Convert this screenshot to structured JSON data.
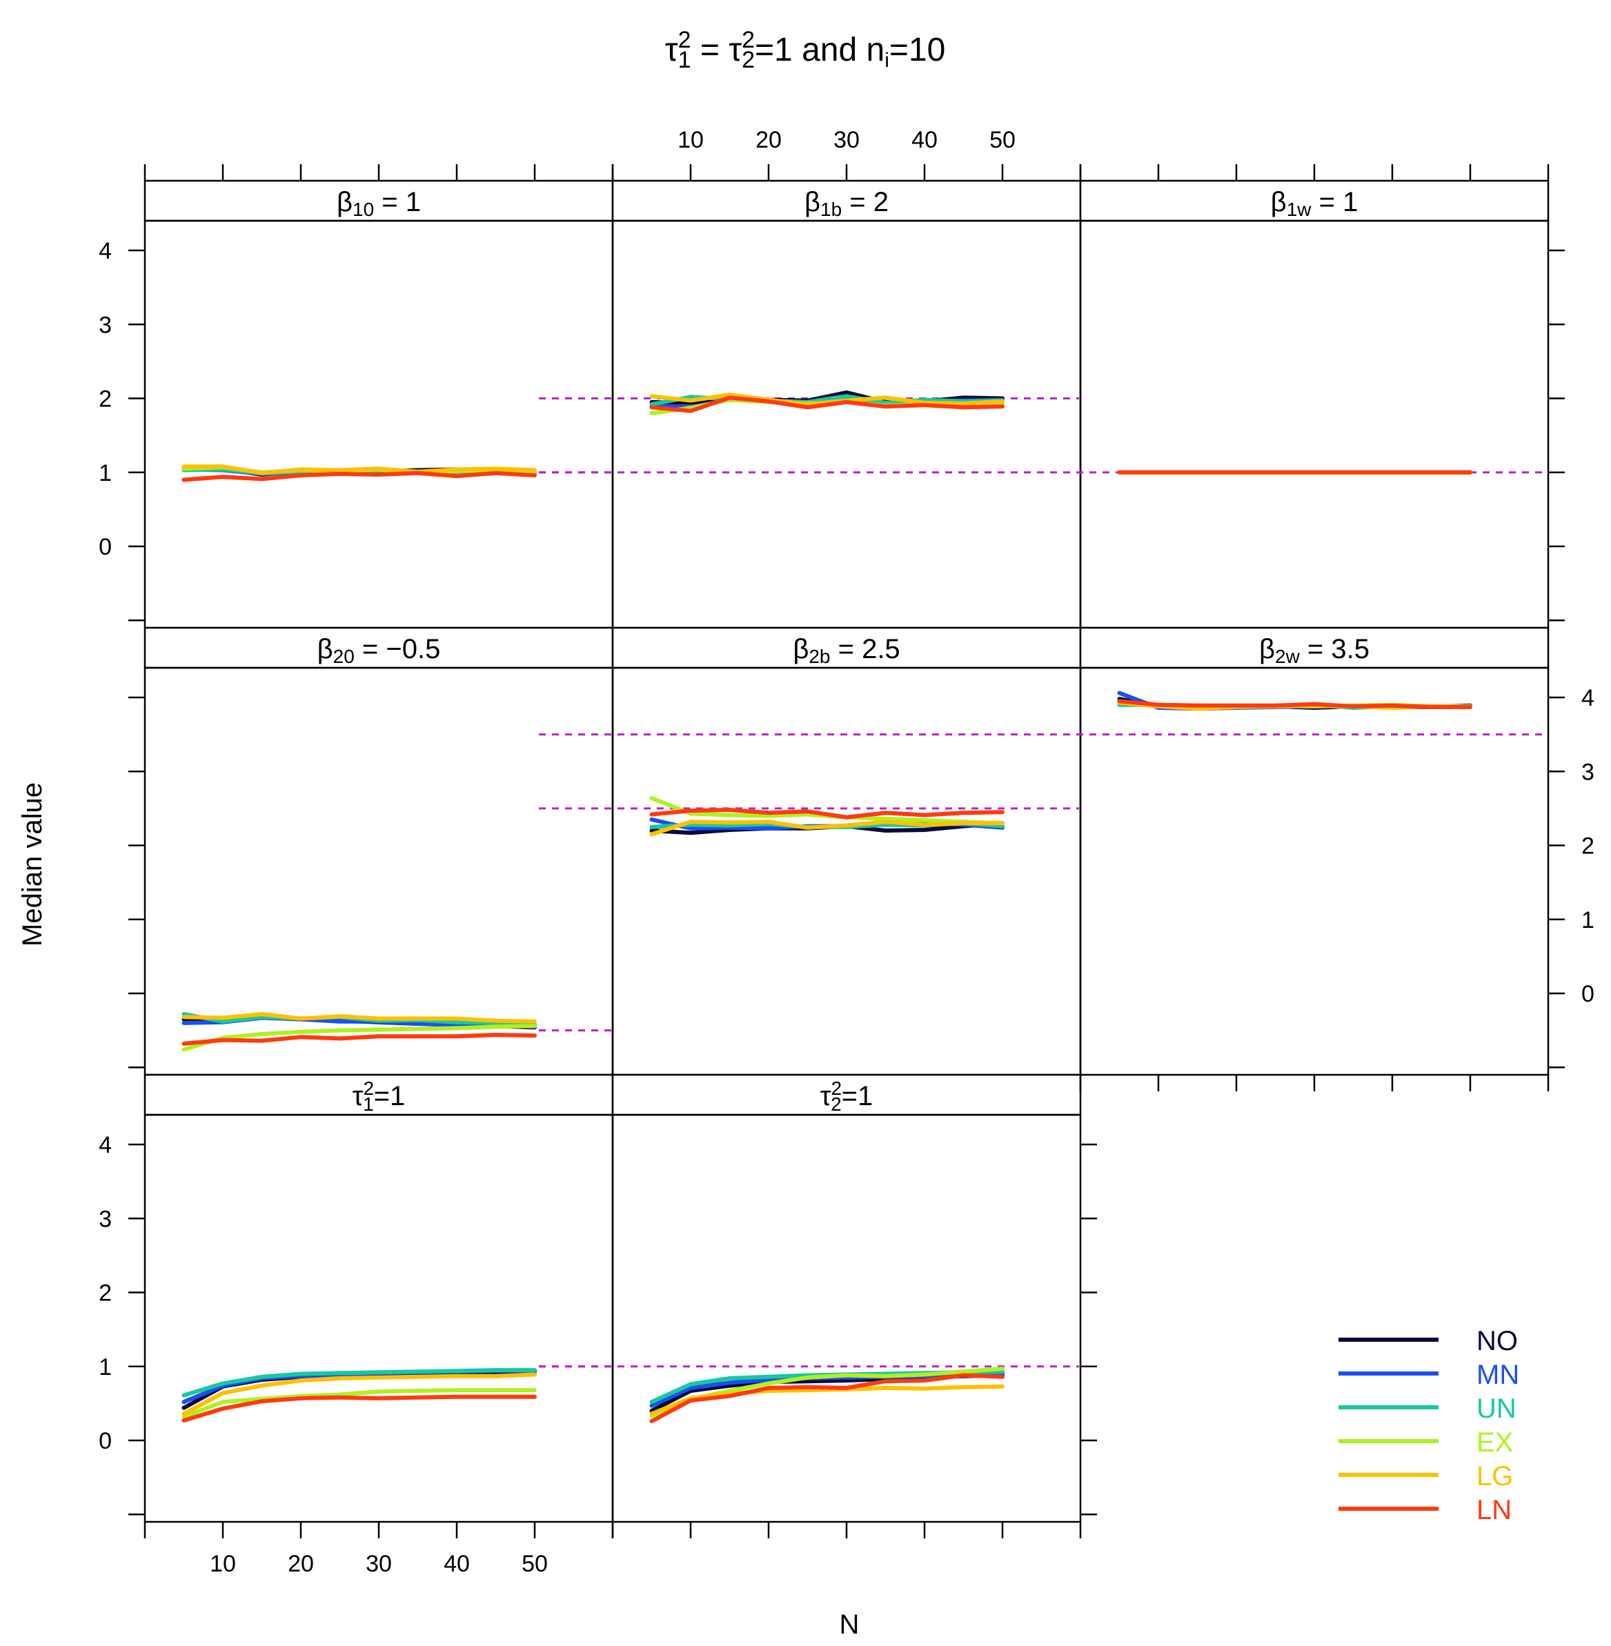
{
  "chart_data": {
    "type": "line",
    "title": "τ₁² = τ₂²=1 and nᵢ=10",
    "title_parts": {
      "tau": "τ",
      "sup": "2",
      "sub1": "1",
      "sub2": "2",
      "eq": " = ",
      "mid": "=1 and n",
      "sub_i": "i",
      "end": "=10"
    },
    "xlabel": "N",
    "ylabel": "Median value",
    "x": [
      5,
      10,
      15,
      20,
      25,
      30,
      35,
      40,
      45,
      50
    ],
    "x_ticks": [
      "10",
      "20",
      "30",
      "40",
      "50"
    ],
    "y_ticks": [
      "0",
      "1",
      "2",
      "3",
      "4"
    ],
    "xlim": [
      0,
      60
    ],
    "ylim": [
      -1.0,
      4.4
    ],
    "reference_style": "dashed",
    "reference_color": "#bb22cc",
    "series_names": [
      "NO",
      "MN",
      "UN",
      "EX",
      "LG",
      "LN"
    ],
    "series_colors": [
      "#0a0a3c",
      "#1a4ff0",
      "#18c8a0",
      "#b0f020",
      "#ffc000",
      "#ff3a10"
    ],
    "legend": [
      {
        "name": "NO",
        "color": "#0a0a3c"
      },
      {
        "name": "MN",
        "color": "#1a4ff0"
      },
      {
        "name": "UN",
        "color": "#18c8a0"
      },
      {
        "name": "EX",
        "color": "#b0f020"
      },
      {
        "name": "LG",
        "color": "#ffc000"
      },
      {
        "name": "LN",
        "color": "#ff3a10"
      }
    ],
    "panels": [
      {
        "id": "beta10",
        "label": {
          "sym": "β",
          "sub": "10",
          "rest": " = 1"
        },
        "reference": 1,
        "series": [
          {
            "name": "NO",
            "values": [
              1.06,
              1.05,
              0.97,
              1.02,
              1.03,
              1.01,
              1.03,
              1.04,
              1.02,
              1.01
            ]
          },
          {
            "name": "MN",
            "values": [
              1.04,
              1.03,
              0.98,
              1.0,
              1.01,
              1.0,
              1.01,
              1.02,
              1.0,
              1.0
            ]
          },
          {
            "name": "UN",
            "values": [
              1.03,
              1.04,
              0.99,
              1.01,
              1.0,
              1.02,
              1.01,
              1.01,
              1.02,
              1.02
            ]
          },
          {
            "name": "EX",
            "values": [
              1.05,
              1.07,
              1.0,
              1.03,
              1.02,
              1.04,
              0.99,
              1.02,
              1.03,
              1.01
            ]
          },
          {
            "name": "LG",
            "values": [
              1.08,
              1.08,
              0.99,
              1.04,
              1.03,
              1.05,
              1.01,
              1.04,
              1.05,
              1.03
            ]
          },
          {
            "name": "LN",
            "values": [
              0.9,
              0.94,
              0.91,
              0.96,
              0.98,
              0.97,
              0.99,
              0.95,
              0.99,
              0.96
            ]
          }
        ]
      },
      {
        "id": "beta1b",
        "label": {
          "sym": "β",
          "sub": "1b",
          "rest": " = 2"
        },
        "reference": 2,
        "series": [
          {
            "name": "NO",
            "values": [
              1.95,
              1.94,
              2.02,
              1.98,
              1.97,
              2.08,
              1.95,
              1.96,
              2.01,
              2.0
            ]
          },
          {
            "name": "MN",
            "values": [
              1.9,
              1.88,
              1.98,
              1.96,
              1.94,
              1.98,
              1.93,
              1.96,
              1.97,
              1.98
            ]
          },
          {
            "name": "UN",
            "values": [
              1.92,
              2.02,
              1.99,
              1.97,
              1.95,
              2.03,
              1.94,
              1.98,
              1.96,
              1.97
            ]
          },
          {
            "name": "EX",
            "values": [
              1.8,
              1.87,
              1.98,
              1.95,
              1.93,
              1.95,
              1.9,
              1.92,
              1.9,
              1.92
            ]
          },
          {
            "name": "LG",
            "values": [
              2.03,
              1.97,
              2.05,
              1.98,
              1.92,
              1.97,
              2.01,
              1.94,
              1.93,
              1.96
            ]
          },
          {
            "name": "LN",
            "values": [
              1.88,
              1.83,
              2.01,
              1.96,
              1.88,
              1.95,
              1.89,
              1.91,
              1.88,
              1.89
            ]
          }
        ]
      },
      {
        "id": "beta1w",
        "label": {
          "sym": "β",
          "sub": "1w",
          "rest": " = 1"
        },
        "reference": 1,
        "series": [
          {
            "name": "NO",
            "values": [
              1.0,
              1.0,
              1.0,
              1.0,
              1.0,
              1.0,
              1.0,
              1.0,
              1.0,
              1.0
            ]
          },
          {
            "name": "MN",
            "values": [
              1.0,
              1.0,
              1.0,
              1.0,
              1.0,
              1.0,
              1.0,
              1.0,
              1.0,
              1.0
            ]
          },
          {
            "name": "UN",
            "values": [
              1.0,
              1.0,
              1.0,
              1.0,
              1.0,
              1.0,
              1.0,
              1.0,
              1.0,
              1.0
            ]
          },
          {
            "name": "EX",
            "values": [
              1.0,
              1.0,
              1.0,
              1.0,
              1.0,
              1.0,
              1.0,
              1.0,
              1.0,
              1.0
            ]
          },
          {
            "name": "LG",
            "values": [
              1.0,
              1.0,
              1.0,
              1.0,
              1.0,
              1.0,
              1.0,
              1.0,
              1.0,
              1.0
            ]
          },
          {
            "name": "LN",
            "values": [
              1.0,
              1.0,
              1.0,
              1.0,
              1.0,
              1.0,
              1.0,
              1.0,
              1.0,
              1.0
            ]
          }
        ]
      },
      {
        "id": "beta20",
        "label": {
          "sym": "β",
          "sub": "20",
          "rest": " = −0.5"
        },
        "reference": -0.5,
        "series": [
          {
            "name": "NO",
            "values": [
              -0.35,
              -0.36,
              -0.32,
              -0.35,
              -0.37,
              -0.39,
              -0.41,
              -0.42,
              -0.44,
              -0.46
            ]
          },
          {
            "name": "MN",
            "values": [
              -0.4,
              -0.39,
              -0.33,
              -0.35,
              -0.38,
              -0.38,
              -0.41,
              -0.43,
              -0.42,
              -0.45
            ]
          },
          {
            "name": "UN",
            "values": [
              -0.28,
              -0.38,
              -0.32,
              -0.34,
              -0.32,
              -0.37,
              -0.36,
              -0.39,
              -0.4,
              -0.42
            ]
          },
          {
            "name": "EX",
            "values": [
              -0.76,
              -0.6,
              -0.55,
              -0.52,
              -0.5,
              -0.49,
              -0.48,
              -0.47,
              -0.45,
              -0.44
            ]
          },
          {
            "name": "LG",
            "values": [
              -0.32,
              -0.33,
              -0.28,
              -0.34,
              -0.31,
              -0.34,
              -0.34,
              -0.34,
              -0.37,
              -0.38
            ]
          },
          {
            "name": "LN",
            "values": [
              -0.68,
              -0.63,
              -0.64,
              -0.59,
              -0.61,
              -0.58,
              -0.58,
              -0.58,
              -0.56,
              -0.57
            ]
          }
        ]
      },
      {
        "id": "beta2b",
        "label": {
          "sym": "β",
          "sub": "2b",
          "rest": " = 2.5"
        },
        "reference": 2.5,
        "series": [
          {
            "name": "NO",
            "values": [
              2.2,
              2.17,
              2.21,
              2.23,
              2.23,
              2.26,
              2.2,
              2.21,
              2.26,
              2.3
            ]
          },
          {
            "name": "MN",
            "values": [
              2.35,
              2.23,
              2.24,
              2.23,
              2.26,
              2.26,
              2.31,
              2.31,
              2.28,
              2.24
            ]
          },
          {
            "name": "UN",
            "values": [
              2.25,
              2.28,
              2.27,
              2.29,
              2.25,
              2.25,
              2.28,
              2.27,
              2.3,
              2.26
            ]
          },
          {
            "name": "EX",
            "values": [
              2.64,
              2.43,
              2.41,
              2.4,
              2.42,
              2.38,
              2.36,
              2.34,
              2.32,
              2.3
            ]
          },
          {
            "name": "LG",
            "values": [
              2.15,
              2.32,
              2.31,
              2.32,
              2.24,
              2.27,
              2.32,
              2.28,
              2.3,
              2.3
            ]
          },
          {
            "name": "LN",
            "values": [
              2.42,
              2.47,
              2.48,
              2.44,
              2.46,
              2.38,
              2.44,
              2.41,
              2.44,
              2.45
            ]
          }
        ]
      },
      {
        "id": "beta2w",
        "label": {
          "sym": "β",
          "sub": "2w",
          "rest": " = 3.5"
        },
        "reference": 3.5,
        "series": [
          {
            "name": "NO",
            "values": [
              3.98,
              3.88,
              3.87,
              3.88,
              3.88,
              3.86,
              3.88,
              3.87,
              3.87,
              3.89
            ]
          },
          {
            "name": "MN",
            "values": [
              4.06,
              3.86,
              3.85,
              3.86,
              3.87,
              3.88,
              3.89,
              3.88,
              3.88,
              3.88
            ]
          },
          {
            "name": "UN",
            "values": [
              3.9,
              3.9,
              3.89,
              3.88,
              3.88,
              3.9,
              3.86,
              3.88,
              3.87,
              3.88
            ]
          },
          {
            "name": "EX",
            "values": [
              3.93,
              3.89,
              3.86,
              3.88,
              3.89,
              3.88,
              3.89,
              3.9,
              3.88,
              3.88
            ]
          },
          {
            "name": "LG",
            "values": [
              3.93,
              3.88,
              3.85,
              3.87,
              3.88,
              3.89,
              3.88,
              3.86,
              3.88,
              3.87
            ]
          },
          {
            "name": "LN",
            "values": [
              3.95,
              3.9,
              3.89,
              3.89,
              3.89,
              3.91,
              3.88,
              3.89,
              3.87,
              3.87
            ]
          }
        ]
      },
      {
        "id": "tau1",
        "label": {
          "sym": "τ",
          "sup": "2",
          "sub": "1",
          "rest": "=1"
        },
        "reference": 1,
        "series": [
          {
            "name": "NO",
            "values": [
              0.44,
              0.73,
              0.82,
              0.86,
              0.88,
              0.89,
              0.9,
              0.91,
              0.92,
              0.93
            ]
          },
          {
            "name": "MN",
            "values": [
              0.52,
              0.74,
              0.84,
              0.87,
              0.89,
              0.91,
              0.92,
              0.93,
              0.94,
              0.94
            ]
          },
          {
            "name": "UN",
            "values": [
              0.61,
              0.77,
              0.86,
              0.9,
              0.91,
              0.92,
              0.93,
              0.94,
              0.95,
              0.95
            ]
          },
          {
            "name": "EX",
            "values": [
              0.32,
              0.52,
              0.56,
              0.6,
              0.62,
              0.66,
              0.67,
              0.68,
              0.68,
              0.68
            ]
          },
          {
            "name": "LG",
            "values": [
              0.36,
              0.64,
              0.74,
              0.81,
              0.84,
              0.85,
              0.86,
              0.87,
              0.87,
              0.89
            ]
          },
          {
            "name": "LN",
            "values": [
              0.27,
              0.43,
              0.53,
              0.57,
              0.58,
              0.57,
              0.58,
              0.59,
              0.59,
              0.59
            ]
          }
        ]
      },
      {
        "id": "tau2",
        "label": {
          "sym": "τ",
          "sup": "2",
          "sub": "2",
          "rest": "=1"
        },
        "reference": 1,
        "series": [
          {
            "name": "NO",
            "values": [
              0.4,
              0.67,
              0.74,
              0.79,
              0.8,
              0.81,
              0.83,
              0.85,
              0.87,
              0.88
            ]
          },
          {
            "name": "MN",
            "values": [
              0.47,
              0.71,
              0.78,
              0.82,
              0.84,
              0.85,
              0.86,
              0.87,
              0.89,
              0.9
            ]
          },
          {
            "name": "UN",
            "values": [
              0.52,
              0.76,
              0.84,
              0.86,
              0.88,
              0.89,
              0.9,
              0.91,
              0.92,
              0.93
            ]
          },
          {
            "name": "EX",
            "values": [
              0.33,
              0.56,
              0.67,
              0.77,
              0.85,
              0.88,
              0.87,
              0.89,
              0.93,
              0.97
            ]
          },
          {
            "name": "LG",
            "values": [
              0.36,
              0.57,
              0.63,
              0.67,
              0.68,
              0.69,
              0.71,
              0.7,
              0.72,
              0.73
            ]
          },
          {
            "name": "LN",
            "values": [
              0.26,
              0.54,
              0.6,
              0.71,
              0.72,
              0.71,
              0.8,
              0.81,
              0.88,
              0.86
            ]
          }
        ]
      }
    ]
  }
}
